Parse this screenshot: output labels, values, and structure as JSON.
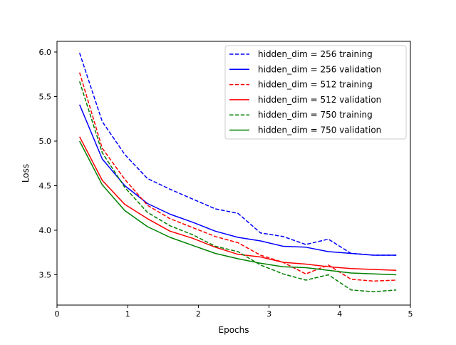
{
  "chart_data": {
    "type": "line",
    "title": "",
    "xlabel": "Epochs",
    "ylabel": "Loss",
    "xlim": [
      0,
      5
    ],
    "ylim": [
      3.16,
      6.12
    ],
    "x_ticks": [
      0,
      1,
      2,
      3,
      4,
      5
    ],
    "x_tick_labels": [
      "0",
      "1",
      "2",
      "3",
      "4",
      "5"
    ],
    "y_ticks": [
      3.5,
      4.0,
      4.5,
      5.0,
      5.5,
      6.0
    ],
    "y_tick_labels": [
      "3.5",
      "4.0",
      "4.5",
      "5.0",
      "5.5",
      "6.0"
    ],
    "grid": false,
    "legend_position": "top-right",
    "x": [
      0.32,
      0.64,
      0.96,
      1.28,
      1.6,
      1.92,
      2.24,
      2.56,
      2.88,
      3.2,
      3.52,
      3.84,
      4.16,
      4.48,
      4.8
    ],
    "series": [
      {
        "name": "hidden_dim = 256 training",
        "color": "#0000ff",
        "dash": "dashed",
        "values": [
          5.99,
          5.22,
          4.85,
          4.58,
          4.46,
          4.35,
          4.24,
          4.19,
          3.97,
          3.93,
          3.84,
          3.9,
          3.74,
          3.72,
          3.72
        ]
      },
      {
        "name": "hidden_dim = 256 validation",
        "color": "#0000ff",
        "dash": "solid",
        "values": [
          5.41,
          4.8,
          4.5,
          4.3,
          4.18,
          4.09,
          3.99,
          3.92,
          3.88,
          3.82,
          3.81,
          3.76,
          3.74,
          3.72,
          3.72
        ]
      },
      {
        "name": "hidden_dim = 512 training",
        "color": "#ff0000",
        "dash": "dashed",
        "values": [
          5.77,
          4.92,
          4.57,
          4.28,
          4.13,
          4.03,
          3.93,
          3.86,
          3.72,
          3.64,
          3.51,
          3.61,
          3.45,
          3.43,
          3.44
        ]
      },
      {
        "name": "hidden_dim = 512 validation",
        "color": "#ff0000",
        "dash": "solid",
        "values": [
          5.05,
          4.56,
          4.29,
          4.13,
          3.99,
          3.91,
          3.81,
          3.73,
          3.7,
          3.64,
          3.62,
          3.59,
          3.57,
          3.56,
          3.55
        ]
      },
      {
        "name": "hidden_dim = 750 training",
        "color": "#008000",
        "dash": "dashed",
        "values": [
          5.67,
          4.87,
          4.48,
          4.2,
          4.05,
          3.95,
          3.82,
          3.76,
          3.61,
          3.51,
          3.44,
          3.5,
          3.33,
          3.31,
          3.33
        ]
      },
      {
        "name": "hidden_dim = 750 validation",
        "color": "#008000",
        "dash": "solid",
        "values": [
          5.0,
          4.51,
          4.22,
          4.04,
          3.92,
          3.83,
          3.74,
          3.68,
          3.63,
          3.59,
          3.58,
          3.55,
          3.52,
          3.51,
          3.5
        ]
      }
    ]
  }
}
